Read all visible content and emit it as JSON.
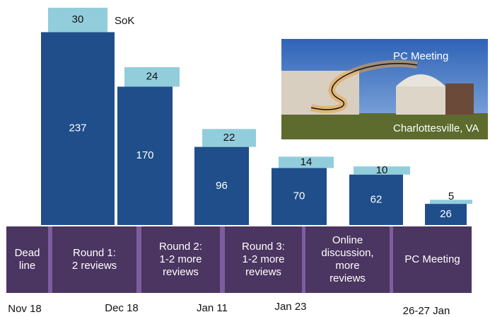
{
  "chart_data": {
    "type": "bar",
    "categories": [
      [
        "Dead",
        "line"
      ],
      [
        "Round 1:",
        "2 reviews"
      ],
      [
        "Round 2:",
        "1-2 more",
        "reviews"
      ],
      [
        "Round 3:",
        "1-2 more",
        "reviews"
      ],
      [
        "Online",
        "discussion,",
        "more",
        "reviews"
      ],
      [
        "PC Meeting"
      ]
    ],
    "series": [
      {
        "color": "#1f4e8a",
        "values": [
          237,
          170,
          96,
          70,
          62,
          26
        ]
      },
      {
        "name": "SoK",
        "color": "#92cddc",
        "values": [
          30,
          24,
          22,
          14,
          10,
          5
        ]
      }
    ],
    "dates": [
      "Nov 18",
      "Dec 18",
      "Jan 11",
      "Jan 23",
      "26-27 Jan"
    ],
    "photo": {
      "labels": [
        "PC Meeting",
        "Charlottesville, VA"
      ]
    }
  }
}
